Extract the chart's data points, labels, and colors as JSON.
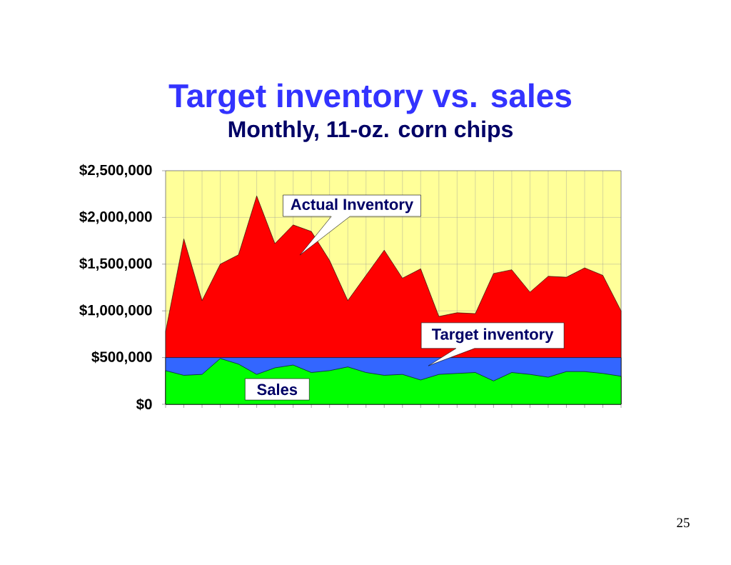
{
  "chart_data": {
    "type": "area",
    "title": "Target inventory vs. sales",
    "subtitle": "Monthly, 11-oz. corn chips",
    "categories": [
      null,
      null,
      null,
      null,
      null,
      null,
      null,
      null,
      null,
      null,
      null,
      null,
      null,
      null,
      null,
      null,
      null,
      null,
      null,
      null,
      null,
      null,
      null,
      null,
      null,
      null
    ],
    "series": [
      {
        "name": "Actual Inventory",
        "color": "#ff0000",
        "values": [
          780000,
          1770000,
          1110000,
          1500000,
          1600000,
          2230000,
          1720000,
          1920000,
          1850000,
          1540000,
          1110000,
          1380000,
          1650000,
          1350000,
          1450000,
          940000,
          980000,
          970000,
          1400000,
          1440000,
          1200000,
          1370000,
          1360000,
          1460000,
          1380000,
          1000000
        ]
      },
      {
        "name": "Target inventory",
        "color": "#3366ff",
        "values": [
          500000,
          500000,
          500000,
          500000,
          500000,
          500000,
          500000,
          500000,
          500000,
          500000,
          500000,
          500000,
          500000,
          500000,
          500000,
          500000,
          500000,
          500000,
          500000,
          500000,
          500000,
          500000,
          500000,
          500000,
          500000,
          500000
        ]
      },
      {
        "name": "Sales",
        "color": "#00ff00",
        "values": [
          360000,
          310000,
          320000,
          490000,
          430000,
          320000,
          390000,
          420000,
          340000,
          360000,
          400000,
          340000,
          310000,
          320000,
          260000,
          320000,
          330000,
          340000,
          250000,
          340000,
          320000,
          290000,
          350000,
          350000,
          330000,
          300000
        ]
      }
    ],
    "ylim": [
      0,
      2500000
    ],
    "yticks": [
      {
        "value": 0,
        "label": "$0"
      },
      {
        "value": 500000,
        "label": "$500,000"
      },
      {
        "value": 1000000,
        "label": "$1,000,000"
      },
      {
        "value": 1500000,
        "label": "$1,500,000"
      },
      {
        "value": 2000000,
        "label": "$2,000,000"
      },
      {
        "value": 2500000,
        "label": "$2,500,000"
      }
    ],
    "grid": true,
    "annotations": [
      "25"
    ]
  }
}
